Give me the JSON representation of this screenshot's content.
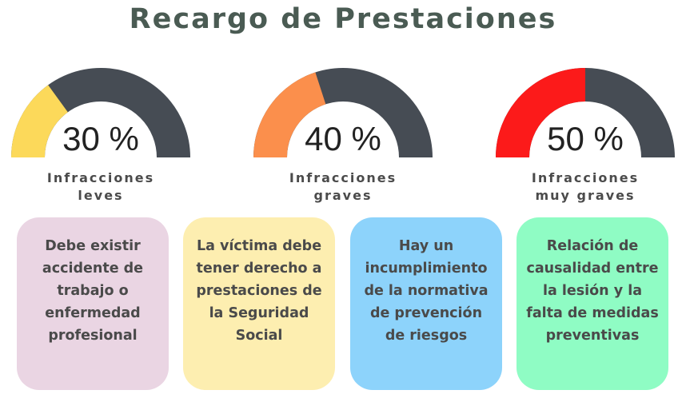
{
  "title": "Recargo de Prestaciones",
  "colors": {
    "gauge_track": "#464c54",
    "title": "#4a5b53"
  },
  "gauges": [
    {
      "value_label": "30 %",
      "value": 30,
      "label_line1": "Infracciones",
      "label_line2": "leves",
      "fill_color": "#fcd95a"
    },
    {
      "value_label": "40 %",
      "value": 40,
      "label_line1": "Infracciones",
      "label_line2": "graves",
      "fill_color": "#fb8f4c"
    },
    {
      "value_label": "50 %",
      "value": 50,
      "label_line1": "Infracciones",
      "label_line2": "muy graves",
      "fill_color": "#fc1a1a"
    }
  ],
  "cards": [
    {
      "text": "Debe existir accidente de trabajo o enfermedad profesional",
      "color": "#ead5e3"
    },
    {
      "text": "La víctima debe tener derecho a prestaciones de la Seguridad Social",
      "color": "#fdeeb0"
    },
    {
      "text": "Hay un incumplimiento de la normativa de prevención de riesgos",
      "color": "#8dd3fb"
    },
    {
      "text": "Relación de causalidad entre la lesión y la falta de medidas preventivas",
      "color": "#8ffcc4"
    }
  ]
}
